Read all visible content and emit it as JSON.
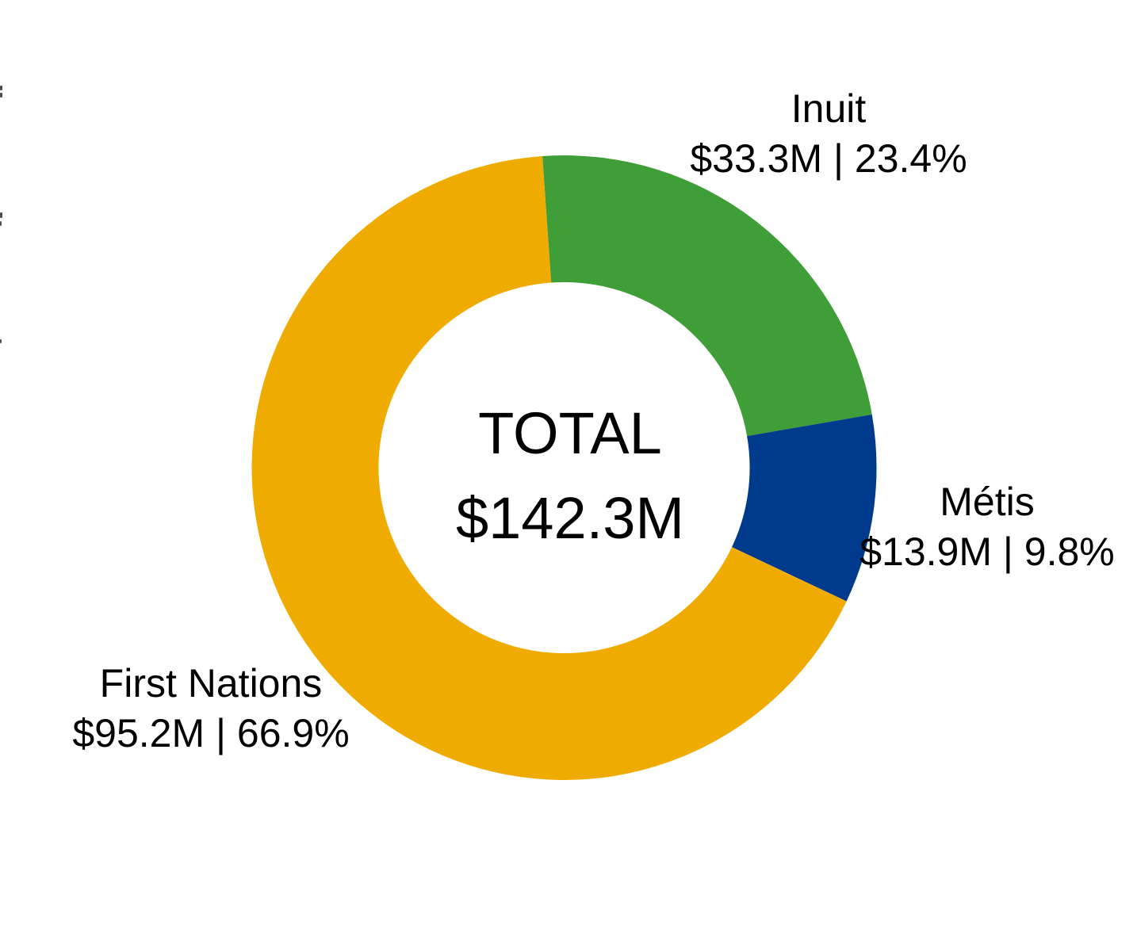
{
  "chart_data": {
    "type": "pie",
    "variant": "donut",
    "title": "",
    "center_label": {
      "line1": "TOTAL",
      "line2": "$142.3M"
    },
    "total": {
      "value_m": 142.3,
      "display": "$142.3M"
    },
    "segments": [
      {
        "name": "Inuit",
        "value_m": 33.3,
        "percent": 23.4,
        "value_label": "$33.3M | 23.4%",
        "color": "#3F9E38"
      },
      {
        "name": "Métis",
        "value_m": 13.9,
        "percent": 9.8,
        "value_label": "$13.9M | 9.8%",
        "color": "#003A8D"
      },
      {
        "name": "First Nations",
        "value_m": 95.2,
        "percent": 66.9,
        "value_label": "$95.2M | 66.9%",
        "color": "#F0AB00"
      }
    ],
    "layout": {
      "start_angle_deg": -4,
      "direction": "clockwise",
      "inner_radius_ratio": 0.594,
      "legend": "none",
      "labels": "outside"
    },
    "background": "#FFFFFF",
    "text_color": "#000000"
  }
}
